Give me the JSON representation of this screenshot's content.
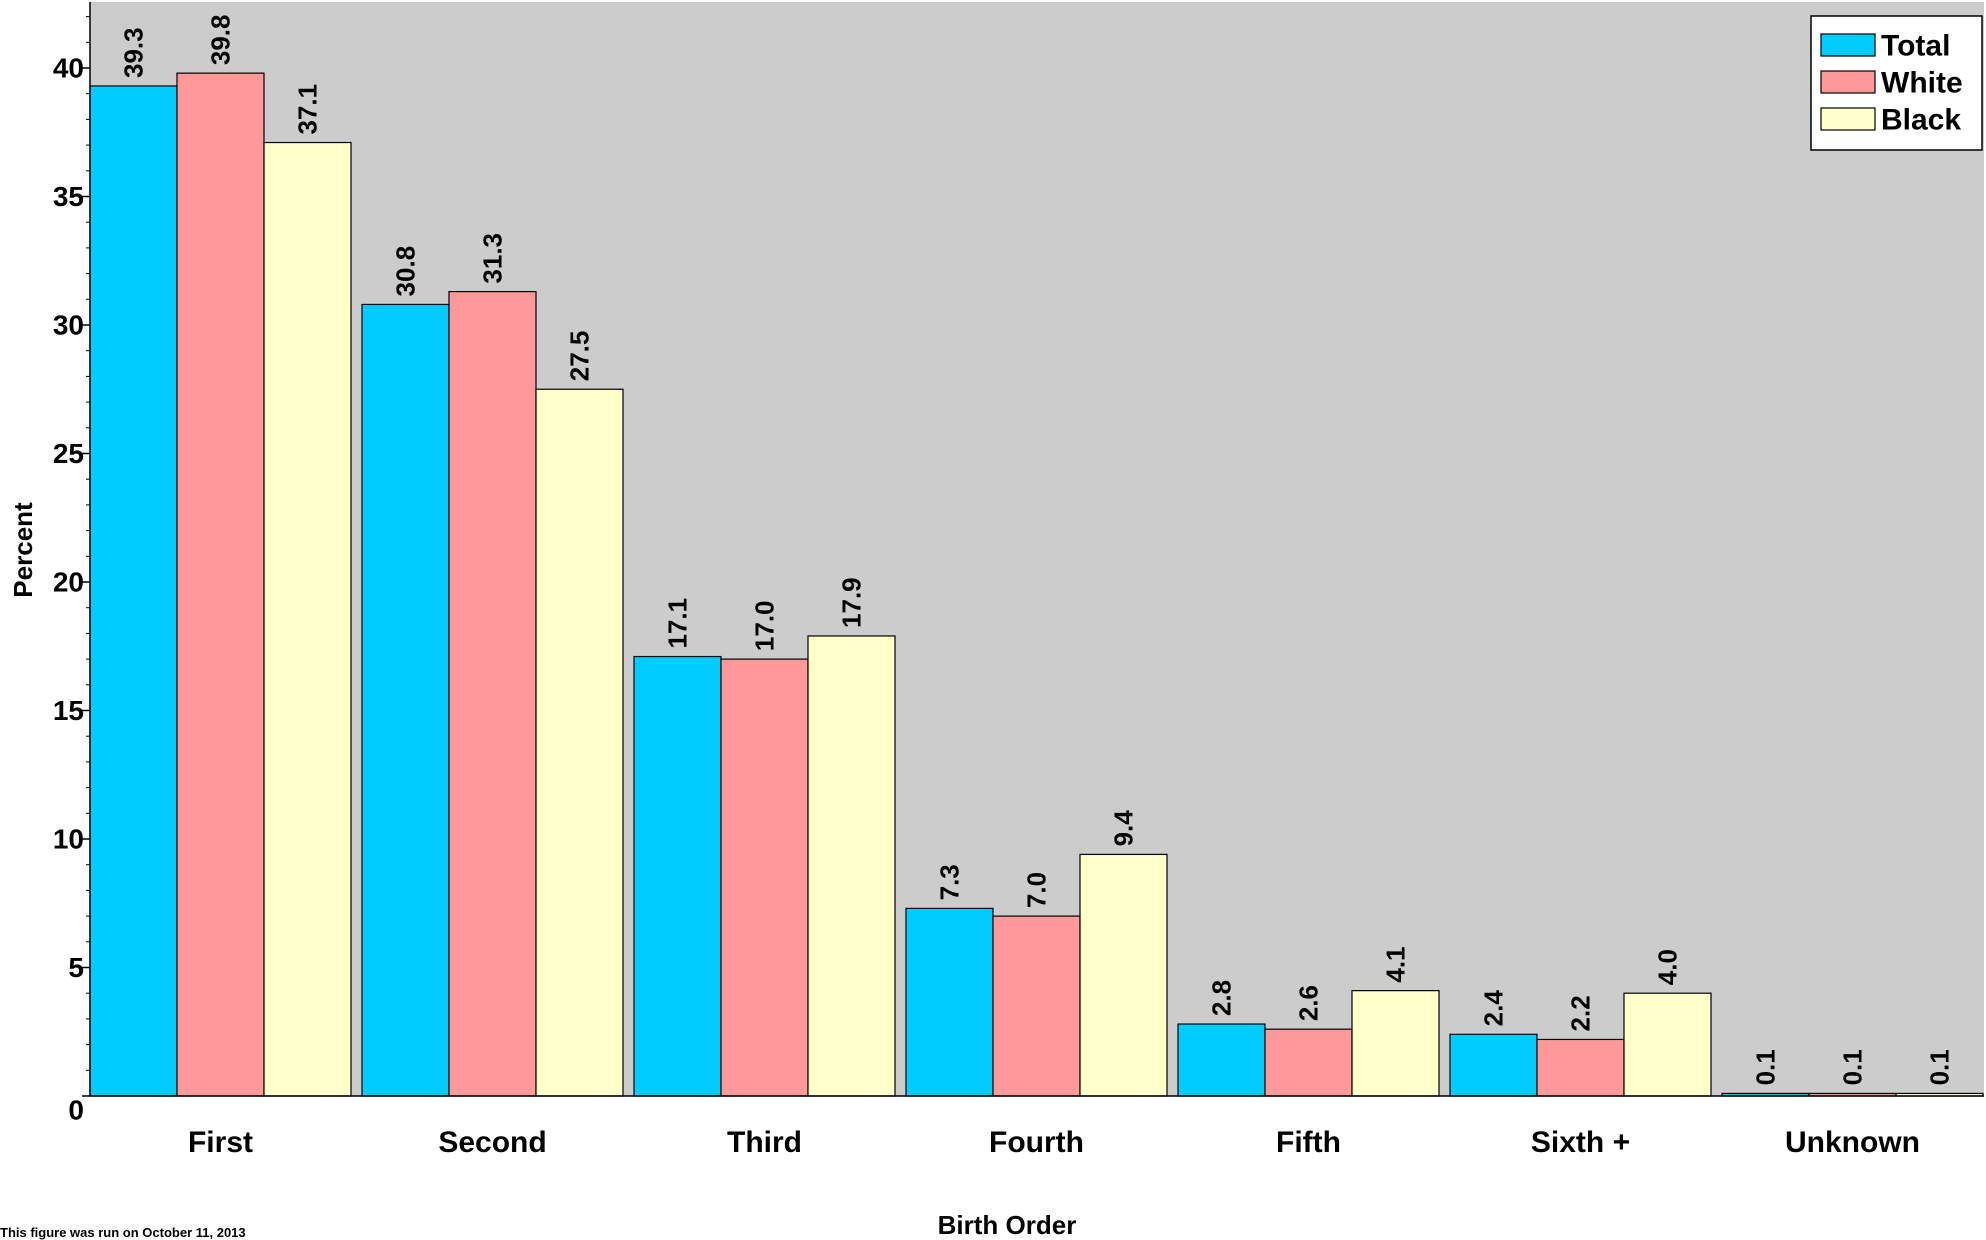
{
  "chart_data": {
    "type": "bar",
    "title": "",
    "xlabel": "Birth Order",
    "ylabel": "Percent",
    "ylim": [
      0,
      42
    ],
    "yticks": [
      0,
      5,
      10,
      15,
      20,
      25,
      30,
      35,
      40
    ],
    "grid": false,
    "legend_position": "top-right",
    "categories": [
      "First",
      "Second",
      "Third",
      "Fourth",
      "Fifth",
      "Sixth +",
      "Unknown"
    ],
    "series": [
      {
        "name": "Total",
        "color": "#00ccff",
        "values": [
          39.3,
          30.8,
          17.1,
          7.3,
          2.8,
          2.4,
          0.1
        ]
      },
      {
        "name": "White",
        "color": "#ff9999",
        "values": [
          39.8,
          31.3,
          17.0,
          7.0,
          2.6,
          2.2,
          0.1
        ]
      },
      {
        "name": "Black",
        "color": "#ffffcc",
        "values": [
          37.1,
          27.5,
          17.9,
          9.4,
          4.1,
          4.0,
          0.1
        ]
      }
    ],
    "data_labels": [
      [
        "39.3",
        "30.8",
        "17.1",
        "7.3",
        "2.8",
        "2.4",
        "0.1"
      ],
      [
        "39.8",
        "31.3",
        "17.0",
        "7.0",
        "2.6",
        "2.2",
        "0.1"
      ],
      [
        "37.1",
        "27.5",
        "17.9",
        "9.4",
        "4.1",
        "4.0",
        "0.1"
      ]
    ],
    "plot_background": "#cccccc"
  },
  "footnote": "This figure was run on October 11, 2013"
}
